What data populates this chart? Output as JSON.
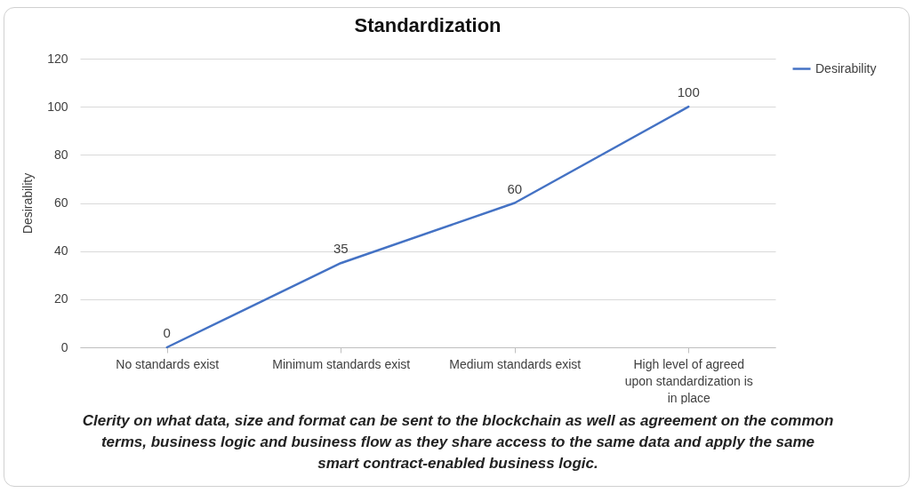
{
  "chart_data": {
    "type": "line",
    "title": "Standardization",
    "ylabel": "Desirability",
    "categories": [
      "No standards exist",
      "Minimum standards exist",
      "Medium standards exist",
      "High level of agreed upon standardization is in place"
    ],
    "series": [
      {
        "name": "Desirability",
        "color": "#4472c4",
        "values": [
          0,
          35,
          60,
          100
        ]
      }
    ],
    "ylim": [
      0,
      120
    ],
    "yticks": [
      0,
      20,
      40,
      60,
      80,
      100,
      120
    ],
    "grid": "y",
    "legend": "right",
    "data_labels": true,
    "marker": "none",
    "line_style": "solid",
    "annotations": [
      "Clerity on what data, size and format can be sent to the blockchain as well as agreement on the common terms, business logic and business flow as they share access to the same data and apply the same smart contract-enabled business logic."
    ]
  }
}
